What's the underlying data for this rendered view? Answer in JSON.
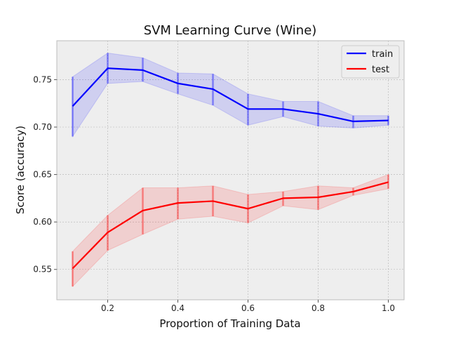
{
  "chart_data": {
    "type": "line",
    "title": "SVM Learning Curve (Wine)",
    "xlabel": "Proportion of Training Data",
    "ylabel": "Score (accuracy)",
    "x": [
      0.1,
      0.2,
      0.3,
      0.4,
      0.5,
      0.6,
      0.7,
      0.8,
      0.9,
      1.0
    ],
    "xlim": [
      0.055,
      1.045
    ],
    "ylim": [
      0.518,
      0.791
    ],
    "xticks": [
      0.2,
      0.4,
      0.6,
      0.8,
      1.0
    ],
    "xtick_labels": [
      "0.2",
      "0.4",
      "0.6",
      "0.8",
      "1.0"
    ],
    "yticks": [
      0.55,
      0.6,
      0.65,
      0.7,
      0.75
    ],
    "ytick_labels": [
      "0.55",
      "0.60",
      "0.65",
      "0.70",
      "0.75"
    ],
    "grid": true,
    "legend_position": "top-right",
    "series": [
      {
        "name": "train",
        "color": "#0000ff",
        "values": [
          0.722,
          0.762,
          0.76,
          0.746,
          0.74,
          0.719,
          0.719,
          0.714,
          0.706,
          0.707
        ],
        "lower": [
          0.69,
          0.746,
          0.748,
          0.735,
          0.723,
          0.702,
          0.711,
          0.701,
          0.699,
          0.702
        ],
        "upper": [
          0.753,
          0.778,
          0.773,
          0.757,
          0.756,
          0.735,
          0.727,
          0.727,
          0.712,
          0.712
        ]
      },
      {
        "name": "test",
        "color": "#ff0000",
        "values": [
          0.551,
          0.589,
          0.612,
          0.62,
          0.622,
          0.614,
          0.625,
          0.626,
          0.632,
          0.642
        ],
        "lower": [
          0.532,
          0.57,
          0.587,
          0.603,
          0.606,
          0.599,
          0.617,
          0.613,
          0.628,
          0.635
        ],
        "upper": [
          0.569,
          0.607,
          0.636,
          0.636,
          0.638,
          0.629,
          0.632,
          0.638,
          0.636,
          0.65
        ]
      }
    ]
  }
}
